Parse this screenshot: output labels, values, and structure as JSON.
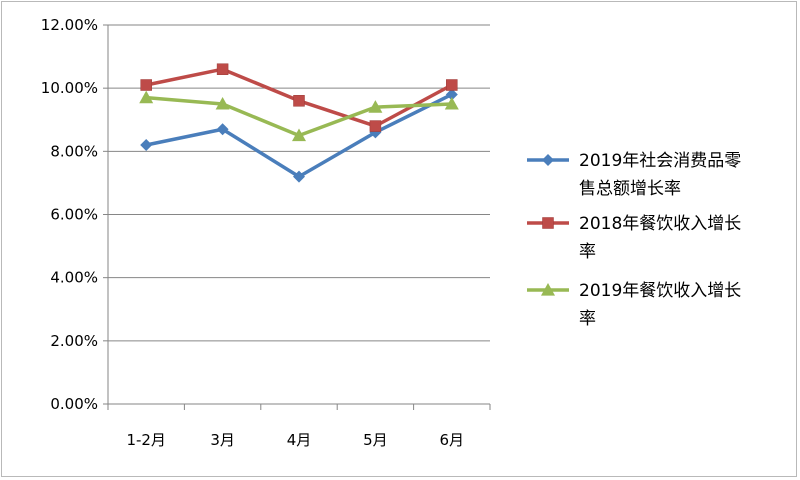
{
  "chart_data": {
    "type": "line",
    "categories": [
      "1-2月",
      "3月",
      "4月",
      "5月",
      "6月"
    ],
    "series": [
      {
        "name": "2019年社会消费品零售总额增长率",
        "legend_lines": [
          "2019年社会消费品零",
          "售总额增长率"
        ],
        "values": [
          8.2,
          8.7,
          7.2,
          8.6,
          9.8
        ],
        "color": "#4a7ebb",
        "marker": "diamond"
      },
      {
        "name": "2018年餐饮收入增长率",
        "legend_lines": [
          "2018年餐饮收入增长",
          "率"
        ],
        "values": [
          10.1,
          10.6,
          9.6,
          8.8,
          10.1
        ],
        "color": "#be4b48",
        "marker": "square"
      },
      {
        "name": "2019年餐饮收入增长率",
        "legend_lines": [
          "2019年餐饮收入增长",
          "率"
        ],
        "values": [
          9.7,
          9.5,
          8.5,
          9.4,
          9.5
        ],
        "color": "#98b954",
        "marker": "triangle"
      }
    ],
    "y_ticks": [
      "0.00%",
      "2.00%",
      "4.00%",
      "6.00%",
      "8.00%",
      "10.00%",
      "12.00%"
    ],
    "ylim": [
      0,
      12
    ],
    "grid": true,
    "legend_position": "right"
  }
}
